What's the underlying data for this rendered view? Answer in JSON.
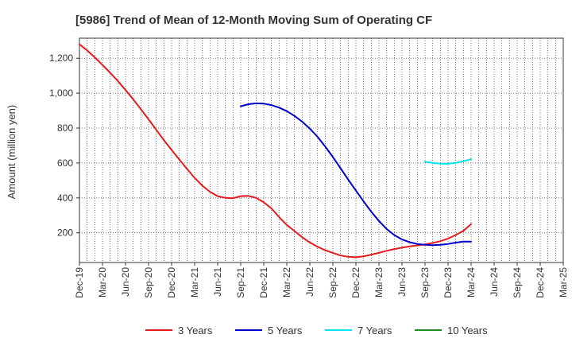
{
  "chart_data": {
    "type": "line",
    "title": "[5986]  Trend of Mean of 12-Month Moving Sum of Operating CF",
    "xlabel": "",
    "ylabel": "Amount (million yen)",
    "ylim": [
      30,
      1315
    ],
    "yticks": [
      200,
      400,
      600,
      800,
      1000,
      1200
    ],
    "ytick_labels": [
      "200",
      "400",
      "600",
      "800",
      "1,000",
      "1,200"
    ],
    "x_tick_labels": [
      "Dec-19",
      "Mar-20",
      "Jun-20",
      "Sep-20",
      "Dec-20",
      "Mar-21",
      "Jun-21",
      "Sep-21",
      "Dec-21",
      "Mar-22",
      "Jun-22",
      "Sep-22",
      "Dec-22",
      "Mar-23",
      "Jun-23",
      "Sep-23",
      "Dec-23",
      "Mar-24",
      "Jun-24",
      "Sep-24",
      "Dec-24",
      "Mar-25"
    ],
    "grid": true,
    "legend_position": "bottom",
    "series": [
      {
        "name": "3 Years",
        "color": "#e41a1c",
        "x": [
          0,
          1,
          2,
          3,
          4,
          5,
          6,
          7,
          8,
          9,
          10,
          11,
          12,
          13,
          14,
          15,
          16,
          17,
          18,
          19,
          20,
          21,
          22,
          23,
          24,
          25,
          26,
          27,
          28,
          29,
          30,
          31,
          32,
          33,
          34,
          35,
          36,
          37,
          38,
          39,
          40,
          41,
          42,
          43,
          44,
          45,
          46,
          47,
          48,
          49,
          50,
          51
        ],
        "values": [
          1280,
          1245,
          1205,
          1162,
          1117,
          1070,
          1018,
          965,
          908,
          850,
          790,
          731,
          675,
          620,
          567,
          515,
          470,
          435,
          410,
          400,
          398,
          410,
          412,
          400,
          375,
          340,
          290,
          245,
          210,
          175,
          145,
          120,
          100,
          85,
          70,
          63,
          60,
          65,
          75,
          85,
          97,
          107,
          115,
          122,
          128,
          134,
          142,
          152,
          167,
          187,
          212,
          250
        ]
      },
      {
        "name": "5 Years",
        "color": "#0000cd",
        "x": [
          21,
          22,
          23,
          24,
          25,
          26,
          27,
          28,
          29,
          30,
          31,
          32,
          33,
          34,
          35,
          36,
          37,
          38,
          39,
          40,
          41,
          42,
          43,
          44,
          45,
          46,
          47,
          48,
          49,
          50,
          51
        ],
        "values": [
          925,
          937,
          942,
          940,
          932,
          917,
          897,
          870,
          837,
          797,
          750,
          695,
          634,
          570,
          505,
          442,
          380,
          321,
          268,
          222,
          187,
          162,
          146,
          136,
          131,
          129,
          131,
          136,
          144,
          150,
          150
        ]
      },
      {
        "name": "7 Years",
        "color": "#00e5ee",
        "x": [
          45,
          46,
          47,
          48,
          49,
          50,
          51
        ],
        "values": [
          607,
          600,
          596,
          596,
          601,
          610,
          622
        ]
      },
      {
        "name": "10 Years",
        "color": "#228b22",
        "x": [],
        "values": []
      }
    ]
  }
}
